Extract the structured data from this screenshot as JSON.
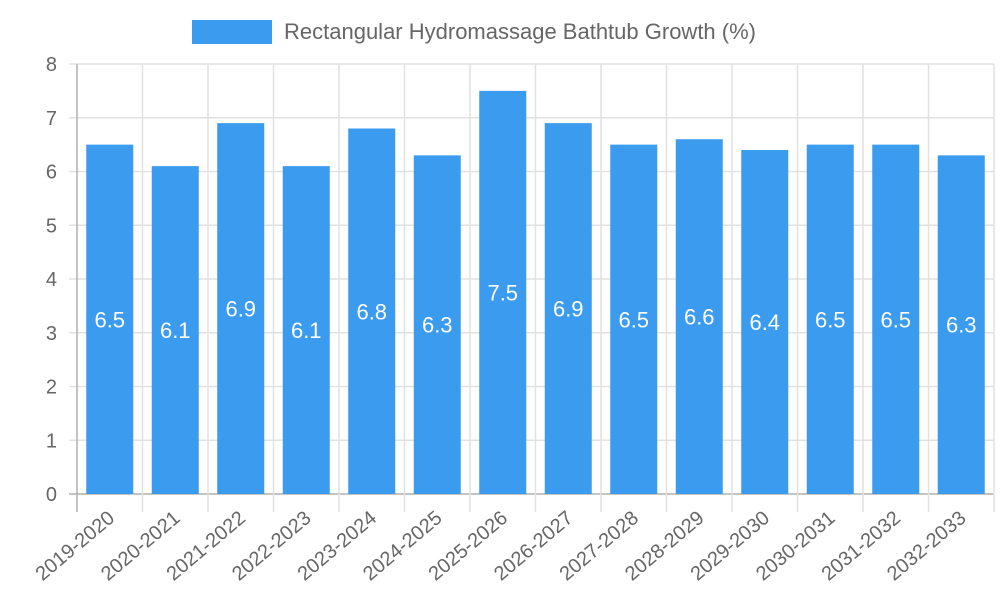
{
  "chart_data": {
    "type": "bar",
    "title": "",
    "legend": [
      {
        "label": "Rectangular Hydromassage Bathtub Growth (%)",
        "color": "#3a9bef"
      }
    ],
    "legend_position": "top",
    "categories": [
      "2019-2020",
      "2020-2021",
      "2021-2022",
      "2022-2023",
      "2023-2024",
      "2024-2025",
      "2025-2026",
      "2026-2027",
      "2027-2028",
      "2028-2029",
      "2029-2030",
      "2030-2031",
      "2031-2032",
      "2032-2033"
    ],
    "series": [
      {
        "name": "Rectangular Hydromassage Bathtub Growth (%)",
        "values": [
          6.5,
          6.1,
          6.9,
          6.1,
          6.8,
          6.3,
          7.5,
          6.9,
          6.5,
          6.6,
          6.4,
          6.5,
          6.5,
          6.3
        ]
      }
    ],
    "xlabel": "",
    "ylabel": "",
    "ylim": [
      0,
      8
    ],
    "yticks": [
      0,
      1,
      2,
      3,
      4,
      5,
      6,
      7,
      8
    ],
    "grid": true,
    "data_labels": true
  },
  "colors": {
    "bar": "#3a9bef",
    "grid": "#e1e1e1",
    "axis": "#b0b0b0",
    "text": "#666666",
    "label": "#ffffff"
  }
}
